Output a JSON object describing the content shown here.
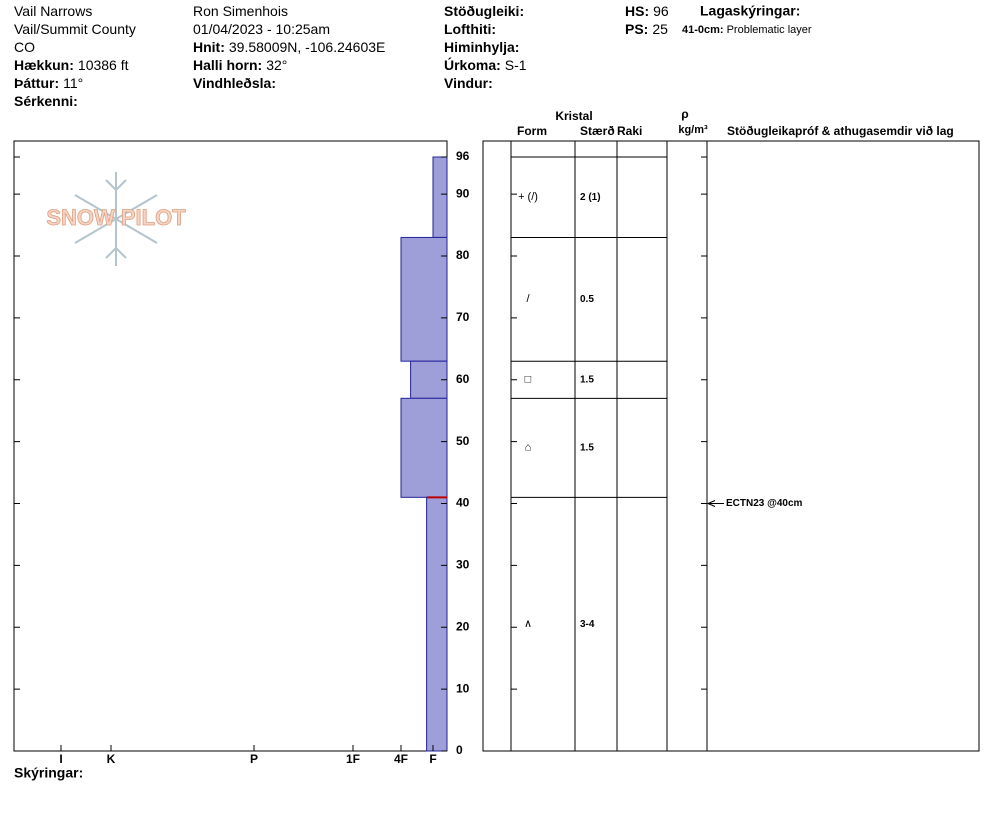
{
  "header": {
    "columns": [
      [
        {
          "value": "Vail Narrows"
        },
        {
          "value": "Vail/Summit County"
        },
        {
          "value": "CO"
        },
        {
          "label": "Hækkun:",
          "value": "10386 ft"
        },
        {
          "label": "Þáttur:",
          "value": "11°"
        },
        {
          "label": "Sérkenni:"
        }
      ],
      [
        {
          "value": "Ron Simenhois"
        },
        {
          "value": "01/04/2023 - 10:25am"
        },
        {
          "label": "Hnit:",
          "value": "39.58009N, -106.24603E"
        },
        {
          "label": "Halli horn:",
          "value": "32°"
        },
        {
          "label": "Vindhleðsla:"
        }
      ],
      [
        {
          "label": "Stöðugleiki:"
        },
        {
          "label": "Lofthiti:"
        },
        {
          "label": "Himinhylja:"
        },
        {
          "label": "Úrkoma:",
          "value": "S-1"
        },
        {
          "label": "Vindur:"
        }
      ],
      [
        {
          "label": "HS:",
          "value": "96"
        },
        {
          "label": "PS:",
          "value": "25"
        }
      ]
    ],
    "layer_notes": {
      "title": "Lagaskýringar:",
      "items": [
        {
          "range": "41-0cm:",
          "text": "Problematic layer"
        }
      ]
    }
  },
  "logo": "SNOW PILOT",
  "profile": {
    "depth_lim": [
      0,
      96
    ],
    "depth_ticks": [
      0,
      10,
      20,
      30,
      40,
      50,
      60,
      70,
      80,
      90,
      96
    ],
    "hardness_ticks": [
      {
        "value": 6,
        "label": "I"
      },
      {
        "value": 5,
        "label": "K"
      },
      {
        "value": 4,
        "label": "P"
      },
      {
        "value": 3,
        "label": "1F"
      },
      {
        "value": 2,
        "label": "4F"
      },
      {
        "value": 1,
        "label": "F"
      }
    ],
    "layers": [
      {
        "top": 96,
        "bottom": 83,
        "hardness": 1,
        "form": "+ (/)",
        "size": "2 (1)"
      },
      {
        "top": 83,
        "bottom": 63,
        "hardness": 2,
        "form": "/",
        "size": "0.5"
      },
      {
        "top": 63,
        "bottom": 57,
        "hardness": 1.7,
        "form": "□",
        "size": "1.5"
      },
      {
        "top": 57,
        "bottom": 41,
        "hardness": 2,
        "form": "⌂",
        "size": "1.5"
      },
      {
        "top": 41,
        "bottom": 0,
        "hardness": 1.2,
        "form": "∧",
        "size": "3-4"
      }
    ],
    "tests": [
      {
        "depth": 40,
        "text": "ECTN23 @40cm"
      }
    ]
  },
  "table_header": {
    "crystal": "Kristal",
    "form": "Form",
    "size": "Stærð",
    "moisture": "Raki",
    "density_symbol": "ρ",
    "density_unit": "kg/m³",
    "comments": "Stöðugleikapróf & athugasemdir við lag"
  },
  "footer": "Skýringar:"
}
